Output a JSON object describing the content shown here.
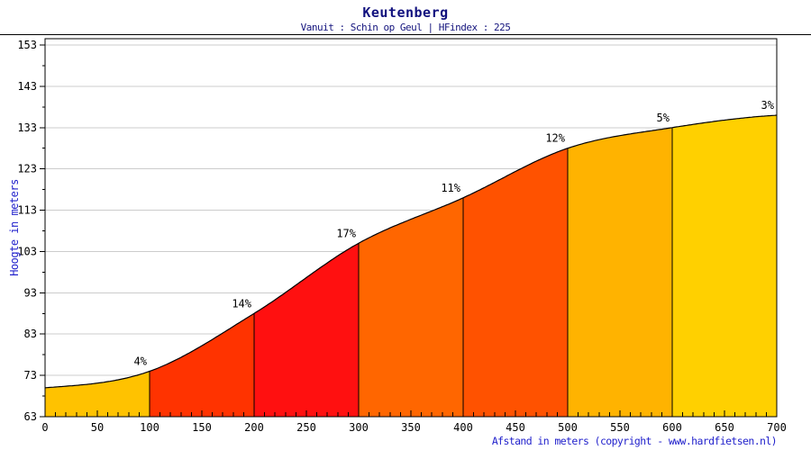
{
  "page": {
    "title": "Keutenberg",
    "subtitle": "Vanuit : Schin op Geul | HFindex : 225"
  },
  "colors": {
    "title": "#10107E",
    "axis_title_blue": "#2222CC",
    "tick_label": "#000000",
    "grid": "#CCCCCC",
    "frame": "#000000",
    "curve": "#000000",
    "background": "#FFFFFF"
  },
  "chart_data": {
    "type": "area",
    "title": "Keutenberg",
    "subtitle": "Vanuit : Schin op Geul | HFindex : 225",
    "xlabel": "Afstand in meters (copyright - www.hardfietsen.nl)",
    "ylabel": "Hoogte in meters",
    "xlim": [
      0,
      700
    ],
    "ylim": [
      63,
      153
    ],
    "x_major_step": 50,
    "x_minor_step": 10,
    "y_major_step": 10,
    "y_minor_step": 5,
    "grid": "horizontal-only",
    "legend": "none",
    "x_tick_labels": [
      "0",
      "50",
      "100",
      "150",
      "200",
      "250",
      "300",
      "350",
      "400",
      "450",
      "500",
      "550",
      "600",
      "650",
      "700"
    ],
    "y_tick_labels": [
      "63",
      "73",
      "83",
      "93",
      "103",
      "113",
      "123",
      "133",
      "143",
      "153"
    ],
    "profile_points": [
      {
        "x": 0,
        "y": 70
      },
      {
        "x": 100,
        "y": 74
      },
      {
        "x": 200,
        "y": 88
      },
      {
        "x": 300,
        "y": 105
      },
      {
        "x": 400,
        "y": 116
      },
      {
        "x": 500,
        "y": 128
      },
      {
        "x": 600,
        "y": 133
      },
      {
        "x": 700,
        "y": 136
      }
    ],
    "segments": [
      {
        "from": 0,
        "to": 100,
        "label": "4%",
        "color": "#FFC200"
      },
      {
        "from": 100,
        "to": 200,
        "label": "14%",
        "color": "#FF3300"
      },
      {
        "from": 200,
        "to": 300,
        "label": "17%",
        "color": "#FF1010"
      },
      {
        "from": 300,
        "to": 400,
        "label": "11%",
        "color": "#FF6600"
      },
      {
        "from": 400,
        "to": 500,
        "label": "12%",
        "color": "#FF5200"
      },
      {
        "from": 500,
        "to": 600,
        "label": "5%",
        "color": "#FFB300"
      },
      {
        "from": 600,
        "to": 700,
        "label": "3%",
        "color": "#FFD000"
      }
    ]
  }
}
